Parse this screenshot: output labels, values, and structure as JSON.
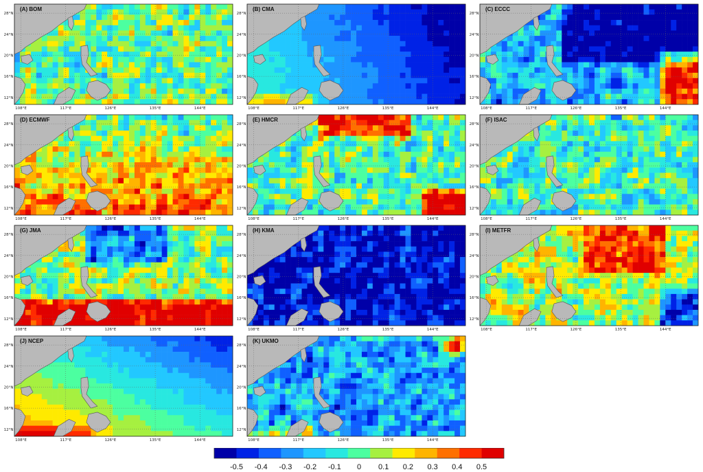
{
  "panels": [
    {
      "label": "(A) BOM",
      "bias": 0.02,
      "seed": 11,
      "pattern": "mixed"
    },
    {
      "label": "(B) CMA",
      "bias": -0.22,
      "seed": 23,
      "pattern": "smooth_east_blue"
    },
    {
      "label": "(C) ECCC",
      "bias": -0.18,
      "seed": 37,
      "pattern": "ne_blue_se_red"
    },
    {
      "label": "(D) ECMWF",
      "bias": 0.04,
      "seed": 41,
      "pattern": "south_warm"
    },
    {
      "label": "(E) HMCR",
      "bias": -0.02,
      "seed": 53,
      "pattern": "north_red"
    },
    {
      "label": "(F) ISAC",
      "bias": -0.05,
      "seed": 61,
      "pattern": "mixed"
    },
    {
      "label": "(G) JMA",
      "bias": 0.08,
      "seed": 73,
      "pattern": "south_red"
    },
    {
      "label": "(H) KMA",
      "bias": -0.35,
      "seed": 89,
      "pattern": "mostly_blue"
    },
    {
      "label": "(I) METFR",
      "bias": 0.1,
      "seed": 97,
      "pattern": "patchy_red"
    },
    {
      "label": "(J) NCEP",
      "bias": -0.12,
      "seed": 101,
      "pattern": "smooth_gradient"
    },
    {
      "label": "(K) UKMO",
      "bias": -0.2,
      "seed": 113,
      "pattern": "mixed_blue"
    }
  ],
  "lat_labels": [
    "28°N",
    "24°N",
    "20°N",
    "16°N",
    "12°N"
  ],
  "lon_labels": [
    "108°E",
    "117°E",
    "126°E",
    "135°E",
    "144°E"
  ],
  "colorbar": {
    "ticks": [
      "-0.5",
      "-0.4",
      "-0.3",
      "-0.2",
      "-0.1",
      "0",
      "0.1",
      "0.2",
      "0.3",
      "0.4",
      "0.5"
    ],
    "colors": [
      "#0000a8",
      "#0022e6",
      "#1060ff",
      "#1e96ff",
      "#22c8ff",
      "#28e8e0",
      "#4cffa0",
      "#a6f040",
      "#ffea00",
      "#ffb400",
      "#ff7000",
      "#ff2a00",
      "#e00000"
    ],
    "min": -0.5,
    "max": 0.5
  },
  "colors": {
    "land": "#b9b9b9",
    "coast": "#555555",
    "grid": "#666666"
  }
}
